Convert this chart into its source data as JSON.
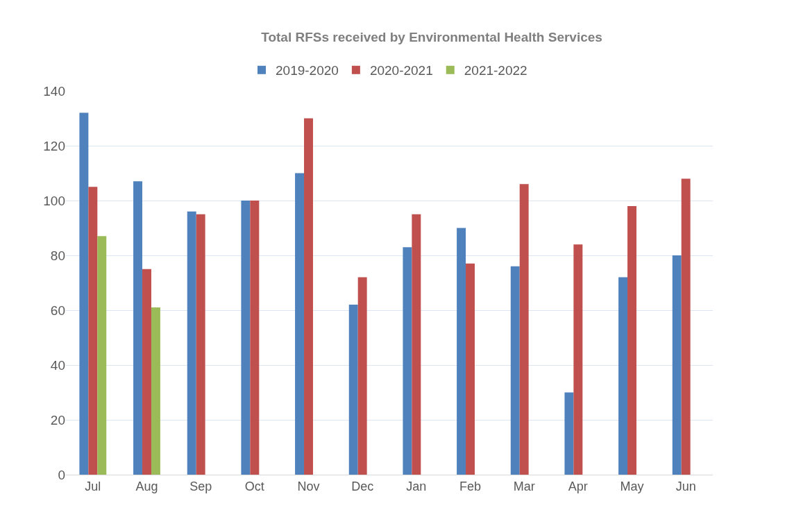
{
  "chart_data": {
    "type": "bar",
    "title": "Total RFSs received by Environmental Health Services",
    "categories": [
      "Jul",
      "Aug",
      "Sep",
      "Oct",
      "Nov",
      "Dec",
      "Jan",
      "Feb",
      "Mar",
      "Apr",
      "May",
      "Jun"
    ],
    "series": [
      {
        "name": "2019-2020",
        "color": "#4f81bd",
        "values": [
          132,
          107,
          96,
          100,
          110,
          62,
          83,
          90,
          76,
          30,
          72,
          80
        ]
      },
      {
        "name": "2020-2021",
        "color": "#c0504d",
        "values": [
          105,
          75,
          95,
          100,
          130,
          72,
          95,
          77,
          106,
          84,
          98,
          108
        ]
      },
      {
        "name": "2021-2022",
        "color": "#9bbb59",
        "values": [
          87,
          61,
          null,
          null,
          null,
          null,
          null,
          null,
          null,
          null,
          null,
          null
        ]
      }
    ],
    "ylim": [
      0,
      140
    ],
    "yticks": [
      0,
      20,
      40,
      60,
      80,
      100,
      120,
      140
    ],
    "grid": "y",
    "legend": "top"
  }
}
